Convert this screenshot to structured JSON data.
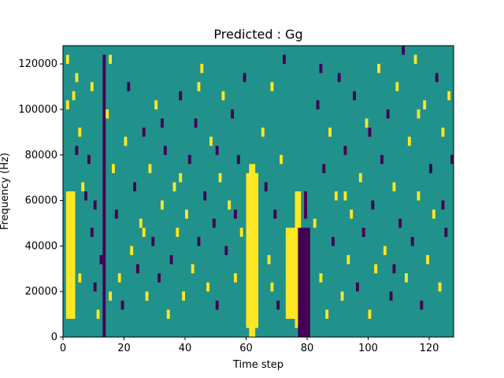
{
  "chart_data": {
    "type": "heatmap",
    "title": "Predicted : Gg",
    "xlabel": "Time step",
    "ylabel": "Frequency (Hz)",
    "xlim": [
      0,
      128
    ],
    "ylim": [
      0,
      128000
    ],
    "x_ticks": [
      0,
      20,
      40,
      60,
      80,
      100,
      120
    ],
    "y_ticks": [
      0,
      20000,
      40000,
      60000,
      80000,
      100000,
      120000
    ],
    "x_tick_labels": [
      "0",
      "20",
      "40",
      "60",
      "80",
      "100",
      "120"
    ],
    "y_tick_labels": [
      "0",
      "20000",
      "40000",
      "60000",
      "80000",
      "100000",
      "120000"
    ],
    "grid": false,
    "colormap": "viridis",
    "colors": {
      "low": "#440154",
      "mid": "#21918c",
      "high": "#fde725"
    },
    "value_levels": [
      -1,
      0,
      1
    ],
    "bins": {
      "time_steps": 128,
      "frequency_bins": 32,
      "bin_height_hz": 4000
    },
    "column_bands": [
      {
        "x": [
          60,
          64
        ],
        "y": [
          4000,
          72000
        ],
        "value": 1
      },
      {
        "x": [
          61,
          63
        ],
        "y": [
          0,
          76000
        ],
        "value": 1
      },
      {
        "x": [
          73,
          76
        ],
        "y": [
          8000,
          48000
        ],
        "value": 1
      },
      {
        "x": [
          76,
          78
        ],
        "y": [
          4000,
          64000
        ],
        "value": 1
      },
      {
        "x": [
          77,
          81
        ],
        "y": [
          0,
          48000
        ],
        "value": -1
      },
      {
        "x": [
          79,
          80
        ],
        "y": [
          52000,
          64000
        ],
        "value": -1
      },
      {
        "x": [
          1,
          4
        ],
        "y": [
          8000,
          64000
        ],
        "value": 1
      },
      {
        "x": [
          13,
          14
        ],
        "y": [
          0,
          124000
        ],
        "value": -1
      }
    ],
    "cells": [
      {
        "t": 2,
        "f": 10,
        "v": 1
      },
      {
        "t": 3,
        "f": 11,
        "v": 1
      },
      {
        "t": 2,
        "f": 13,
        "v": 1
      },
      {
        "t": 1,
        "f": 25,
        "v": 1
      },
      {
        "t": 3,
        "f": 26,
        "v": 1
      },
      {
        "t": 4,
        "f": 28,
        "v": 1
      },
      {
        "t": 4,
        "f": 20,
        "v": -1
      },
      {
        "t": 5,
        "f": 22,
        "v": 1
      },
      {
        "t": 6,
        "f": 16,
        "v": 1
      },
      {
        "t": 7,
        "f": 15,
        "v": -1
      },
      {
        "t": 8,
        "f": 19,
        "v": -1
      },
      {
        "t": 9,
        "f": 11,
        "v": -1
      },
      {
        "t": 10,
        "f": 5,
        "v": -1
      },
      {
        "t": 11,
        "f": 2,
        "v": 1
      },
      {
        "t": 12,
        "f": 8,
        "v": -1
      },
      {
        "t": 14,
        "f": 24,
        "v": 1
      },
      {
        "t": 15,
        "f": 30,
        "v": 1
      },
      {
        "t": 16,
        "f": 18,
        "v": 1
      },
      {
        "t": 17,
        "f": 13,
        "v": -1
      },
      {
        "t": 18,
        "f": 6,
        "v": 1
      },
      {
        "t": 19,
        "f": 3,
        "v": -1
      },
      {
        "t": 20,
        "f": 21,
        "v": 1
      },
      {
        "t": 21,
        "f": 27,
        "v": -1
      },
      {
        "t": 22,
        "f": 9,
        "v": 1
      },
      {
        "t": 23,
        "f": 16,
        "v": -1
      },
      {
        "t": 24,
        "f": 7,
        "v": -1
      },
      {
        "t": 25,
        "f": 12,
        "v": 1
      },
      {
        "t": 26,
        "f": 22,
        "v": -1
      },
      {
        "t": 27,
        "f": 4,
        "v": 1
      },
      {
        "t": 28,
        "f": 18,
        "v": 1
      },
      {
        "t": 29,
        "f": 10,
        "v": -1
      },
      {
        "t": 30,
        "f": 25,
        "v": 1
      },
      {
        "t": 31,
        "f": 6,
        "v": -1
      },
      {
        "t": 32,
        "f": 14,
        "v": 1
      },
      {
        "t": 33,
        "f": 20,
        "v": -1
      },
      {
        "t": 34,
        "f": 2,
        "v": 1
      },
      {
        "t": 35,
        "f": 8,
        "v": -1
      },
      {
        "t": 36,
        "f": 16,
        "v": 1
      },
      {
        "t": 37,
        "f": 11,
        "v": 1
      },
      {
        "t": 38,
        "f": 26,
        "v": -1
      },
      {
        "t": 39,
        "f": 4,
        "v": 1
      },
      {
        "t": 40,
        "f": 13,
        "v": 1
      },
      {
        "t": 41,
        "f": 19,
        "v": -1
      },
      {
        "t": 42,
        "f": 7,
        "v": 1
      },
      {
        "t": 43,
        "f": 23,
        "v": -1
      },
      {
        "t": 44,
        "f": 10,
        "v": -1
      },
      {
        "t": 45,
        "f": 29,
        "v": 1
      },
      {
        "t": 46,
        "f": 15,
        "v": -1
      },
      {
        "t": 47,
        "f": 5,
        "v": 1
      },
      {
        "t": 48,
        "f": 21,
        "v": 1
      },
      {
        "t": 49,
        "f": 12,
        "v": -1
      },
      {
        "t": 50,
        "f": 3,
        "v": -1
      },
      {
        "t": 51,
        "f": 17,
        "v": 1
      },
      {
        "t": 52,
        "f": 26,
        "v": 1
      },
      {
        "t": 53,
        "f": 9,
        "v": -1
      },
      {
        "t": 54,
        "f": 14,
        "v": 1
      },
      {
        "t": 55,
        "f": 24,
        "v": -1
      },
      {
        "t": 56,
        "f": 6,
        "v": 1
      },
      {
        "t": 57,
        "f": 19,
        "v": -1
      },
      {
        "t": 58,
        "f": 11,
        "v": 1
      },
      {
        "t": 59,
        "f": 28,
        "v": -1
      },
      {
        "t": 65,
        "f": 22,
        "v": 1
      },
      {
        "t": 66,
        "f": 16,
        "v": -1
      },
      {
        "t": 67,
        "f": 8,
        "v": 1
      },
      {
        "t": 68,
        "f": 27,
        "v": 1
      },
      {
        "t": 69,
        "f": 13,
        "v": -1
      },
      {
        "t": 70,
        "f": 3,
        "v": -1
      },
      {
        "t": 71,
        "f": 19,
        "v": 1
      },
      {
        "t": 72,
        "f": 30,
        "v": -1
      },
      {
        "t": 82,
        "f": 12,
        "v": 1
      },
      {
        "t": 83,
        "f": 25,
        "v": -1
      },
      {
        "t": 84,
        "f": 6,
        "v": 1
      },
      {
        "t": 85,
        "f": 18,
        "v": -1
      },
      {
        "t": 86,
        "f": 2,
        "v": 1
      },
      {
        "t": 87,
        "f": 22,
        "v": 1
      },
      {
        "t": 88,
        "f": 10,
        "v": -1
      },
      {
        "t": 89,
        "f": 15,
        "v": 1
      },
      {
        "t": 90,
        "f": 28,
        "v": -1
      },
      {
        "t": 91,
        "f": 4,
        "v": 1
      },
      {
        "t": 92,
        "f": 20,
        "v": -1
      },
      {
        "t": 93,
        "f": 8,
        "v": 1
      },
      {
        "t": 94,
        "f": 13,
        "v": 1
      },
      {
        "t": 95,
        "f": 26,
        "v": -1
      },
      {
        "t": 96,
        "f": 5,
        "v": -1
      },
      {
        "t": 97,
        "f": 17,
        "v": 1
      },
      {
        "t": 98,
        "f": 11,
        "v": -1
      },
      {
        "t": 99,
        "f": 23,
        "v": 1
      },
      {
        "t": 100,
        "f": 2,
        "v": 1
      },
      {
        "t": 101,
        "f": 14,
        "v": -1
      },
      {
        "t": 102,
        "f": 7,
        "v": 1
      },
      {
        "t": 103,
        "f": 29,
        "v": 1
      },
      {
        "t": 104,
        "f": 19,
        "v": -1
      },
      {
        "t": 105,
        "f": 9,
        "v": 1
      },
      {
        "t": 106,
        "f": 24,
        "v": -1
      },
      {
        "t": 107,
        "f": 4,
        "v": -1
      },
      {
        "t": 108,
        "f": 16,
        "v": 1
      },
      {
        "t": 109,
        "f": 27,
        "v": 1
      },
      {
        "t": 110,
        "f": 12,
        "v": -1
      },
      {
        "t": 111,
        "f": 31,
        "v": -1
      },
      {
        "t": 112,
        "f": 6,
        "v": 1
      },
      {
        "t": 113,
        "f": 21,
        "v": 1
      },
      {
        "t": 114,
        "f": 10,
        "v": -1
      },
      {
        "t": 115,
        "f": 30,
        "v": 1
      },
      {
        "t": 116,
        "f": 15,
        "v": 1
      },
      {
        "t": 117,
        "f": 3,
        "v": -1
      },
      {
        "t": 118,
        "f": 25,
        "v": 1
      },
      {
        "t": 119,
        "f": 8,
        "v": 1
      },
      {
        "t": 120,
        "f": 18,
        "v": -1
      },
      {
        "t": 121,
        "f": 13,
        "v": 1
      },
      {
        "t": 122,
        "f": 28,
        "v": -1
      },
      {
        "t": 123,
        "f": 5,
        "v": 1
      },
      {
        "t": 124,
        "f": 22,
        "v": 1
      },
      {
        "t": 125,
        "f": 11,
        "v": -1
      },
      {
        "t": 126,
        "f": 26,
        "v": 1
      },
      {
        "t": 127,
        "f": 19,
        "v": -1
      },
      {
        "t": 1,
        "f": 30,
        "v": 1
      },
      {
        "t": 5,
        "f": 6,
        "v": 1
      },
      {
        "t": 9,
        "f": 27,
        "v": 1
      },
      {
        "t": 10,
        "f": 14,
        "v": -1
      },
      {
        "t": 15,
        "f": 4,
        "v": 1
      },
      {
        "t": 26,
        "f": 11,
        "v": 1
      },
      {
        "t": 32,
        "f": 23,
        "v": -1
      },
      {
        "t": 38,
        "f": 17,
        "v": 1
      },
      {
        "t": 44,
        "f": 27,
        "v": 1
      },
      {
        "t": 50,
        "f": 20,
        "v": -1
      },
      {
        "t": 56,
        "f": 13,
        "v": -1
      },
      {
        "t": 68,
        "f": 5,
        "v": 1
      },
      {
        "t": 84,
        "f": 29,
        "v": -1
      },
      {
        "t": 92,
        "f": 15,
        "v": 1
      },
      {
        "t": 100,
        "f": 22,
        "v": -1
      },
      {
        "t": 108,
        "f": 7,
        "v": -1
      },
      {
        "t": 116,
        "f": 24,
        "v": 1
      },
      {
        "t": 124,
        "f": 14,
        "v": -1
      }
    ]
  }
}
